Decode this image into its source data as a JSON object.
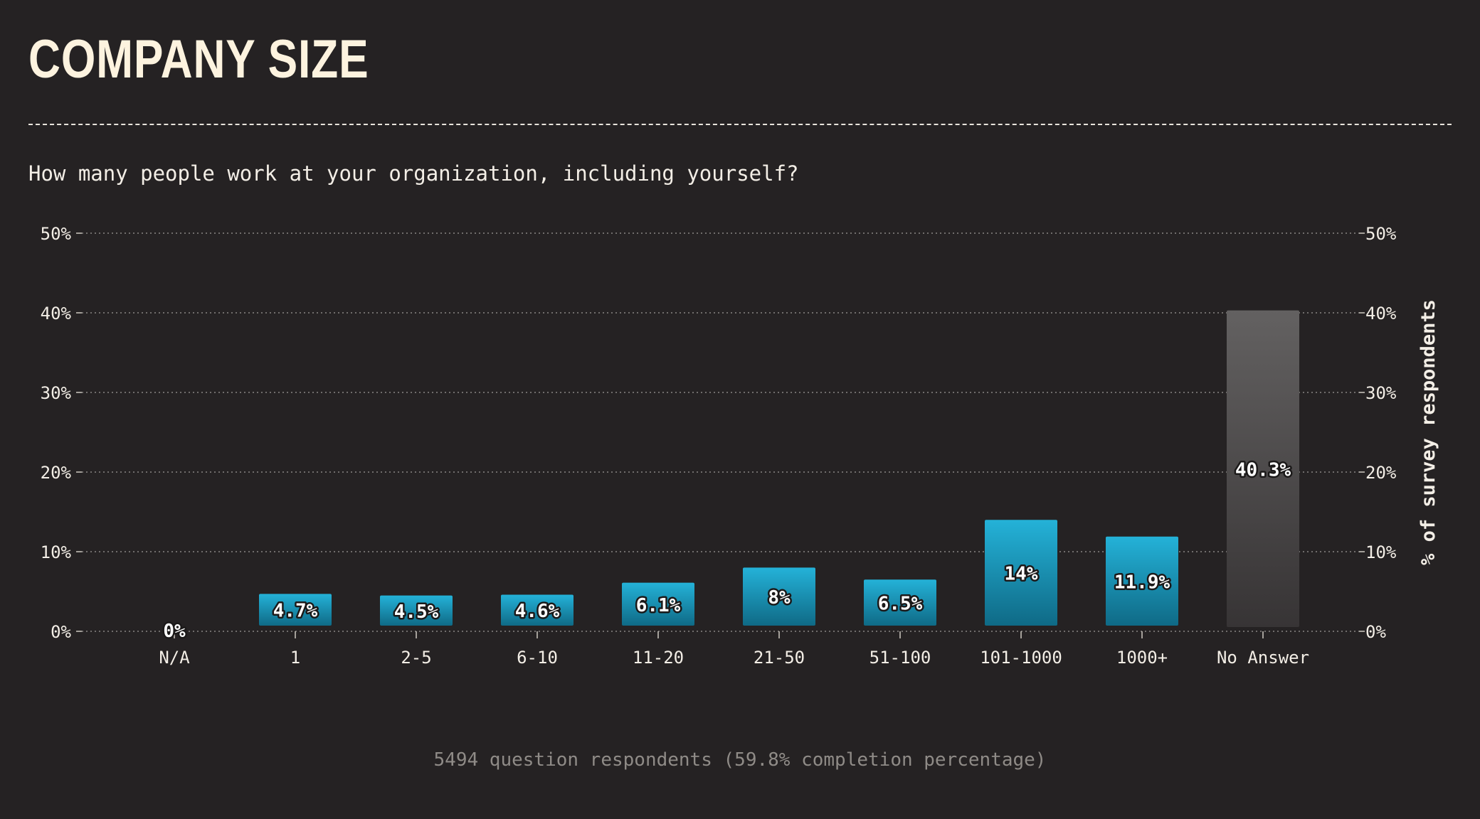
{
  "header": {
    "title": "COMPANY SIZE",
    "subtitle": "How many people work at your organization, including yourself?"
  },
  "footer": {
    "text": "5494 question respondents (59.8% completion percentage)"
  },
  "colors": {
    "background": "#252223",
    "bar_top": "#24b2d8",
    "bar_bottom": "#0f6a86",
    "no_answer_top": "#636161",
    "no_answer_bottom": "#373435",
    "text": "#f3eee6",
    "grid": "#8a8684"
  },
  "chart_data": {
    "type": "bar",
    "categories": [
      "N/A",
      "1",
      "2-5",
      "6-10",
      "11-20",
      "21-50",
      "51-100",
      "101-1000",
      "1000+",
      "No Answer"
    ],
    "values": [
      0,
      4.7,
      4.5,
      4.6,
      6.1,
      8,
      6.5,
      14,
      11.9,
      40.3
    ],
    "value_labels": [
      "0%",
      "4.7%",
      "4.5%",
      "4.6%",
      "6.1%",
      "8%",
      "6.5%",
      "14%",
      "11.9%",
      "40.3%"
    ],
    "ylim": [
      0,
      50
    ],
    "yticks": [
      0,
      10,
      20,
      30,
      40,
      50
    ],
    "ytick_labels": [
      "0%",
      "10%",
      "20%",
      "30%",
      "40%",
      "50%"
    ],
    "ylabel": "% of survey respondents",
    "xlabel": "",
    "grid": true
  }
}
